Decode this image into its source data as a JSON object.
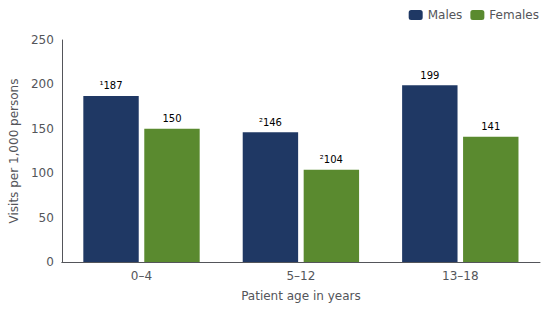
{
  "chart_data": {
    "type": "bar",
    "categories": [
      "0–4",
      "5–12",
      "13–18"
    ],
    "series": [
      {
        "name": "Males",
        "color": "#1f3864",
        "values": [
          187,
          146,
          199
        ],
        "value_labels": [
          "¹187",
          "²146",
          "199"
        ]
      },
      {
        "name": "Females",
        "color": "#5a8a2f",
        "values": [
          150,
          104,
          141
        ],
        "value_labels": [
          "150",
          "²104",
          "141"
        ]
      }
    ],
    "xlabel": "Patient age in years",
    "ylabel": "Visits per 1,000 persons",
    "ylim": [
      0,
      250
    ],
    "yticks": [
      0,
      50,
      100,
      150,
      200,
      250
    ],
    "grid": false,
    "legend": "upper right",
    "data_labels": true
  }
}
